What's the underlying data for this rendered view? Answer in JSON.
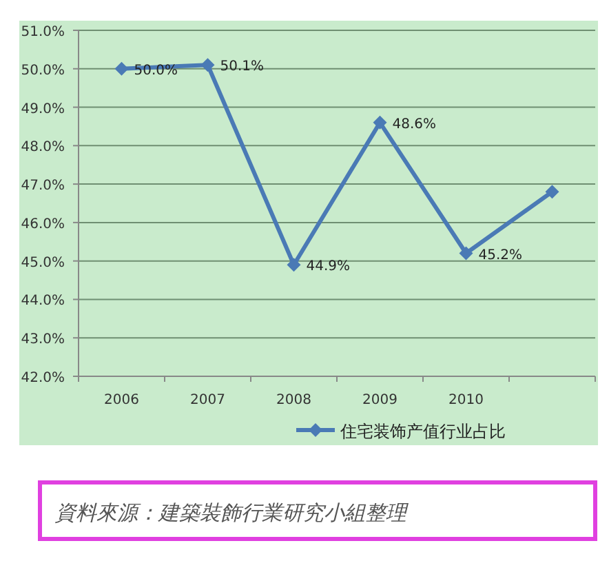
{
  "chart_data": {
    "type": "line",
    "categories": [
      "2006",
      "2007",
      "2008",
      "2009",
      "2010",
      null
    ],
    "series": [
      {
        "name": "住宅装饰产值行业占比",
        "color": "#4a7ab5",
        "values": [
          50.0,
          50.1,
          44.9,
          48.6,
          45.2,
          46.8
        ],
        "value_labels": [
          "50.0%",
          "50.1%",
          "44.9%",
          "48.6%",
          "45.2%",
          null
        ]
      }
    ],
    "ylim": [
      42,
      51
    ],
    "yticks": [
      {
        "value": 42,
        "label": "42.0%"
      },
      {
        "value": 43,
        "label": "43.0%"
      },
      {
        "value": 44,
        "label": "44.0%"
      },
      {
        "value": 45,
        "label": "45.0%"
      },
      {
        "value": 46,
        "label": "46.0%"
      },
      {
        "value": 47,
        "label": "47.0%"
      },
      {
        "value": 48,
        "label": "48.0%"
      },
      {
        "value": 49,
        "label": "49.0%"
      },
      {
        "value": 50,
        "label": "50.0%"
      },
      {
        "value": 51,
        "label": "51.0%"
      }
    ],
    "grid": "y",
    "legend": "bottom",
    "marker": "diamond",
    "line_style": "solid",
    "annotations": [
      "資料來源：建築裝飾行業研究小組整理"
    ]
  }
}
